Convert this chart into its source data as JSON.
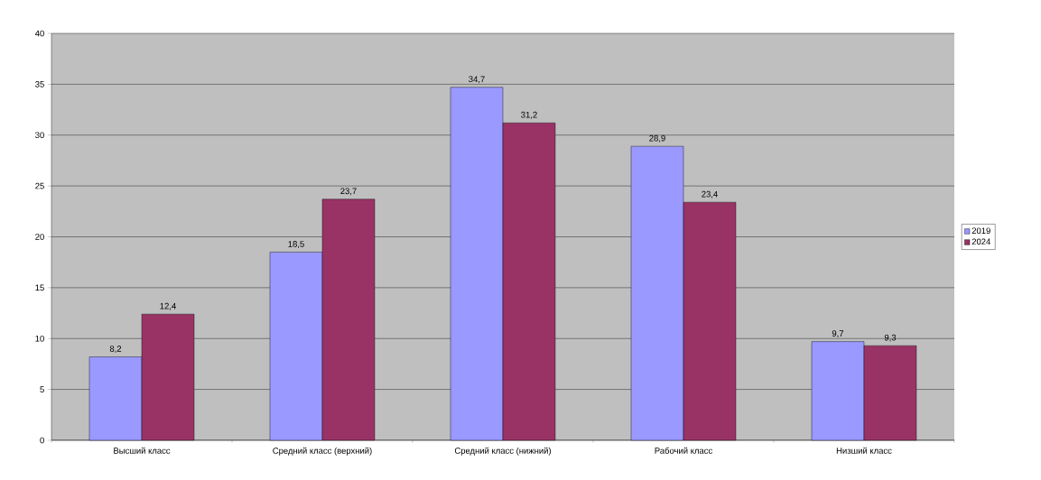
{
  "chart_data": {
    "type": "bar",
    "categories": [
      "Высший класс",
      "Средний класс (верхний)",
      "Средний класс (нижний)",
      "Рабочий класс",
      "Низший класс"
    ],
    "series": [
      {
        "name": "2019",
        "color": "#9999ff",
        "values": [
          8.2,
          18.5,
          34.7,
          28.9,
          9.7
        ],
        "value_labels": [
          "8,2",
          "18,5",
          "34,7",
          "28,9",
          "9,7"
        ]
      },
      {
        "name": "2024",
        "color": "#993366",
        "values": [
          12.4,
          23.7,
          31.2,
          23.4,
          9.3
        ],
        "value_labels": [
          "12,4",
          "23,7",
          "31,2",
          "23,4",
          "9,3"
        ]
      }
    ],
    "ylim": [
      0,
      40
    ],
    "yticks": [
      0,
      5,
      10,
      15,
      20,
      25,
      30,
      35,
      40
    ],
    "grid": "y",
    "legend": "right"
  }
}
